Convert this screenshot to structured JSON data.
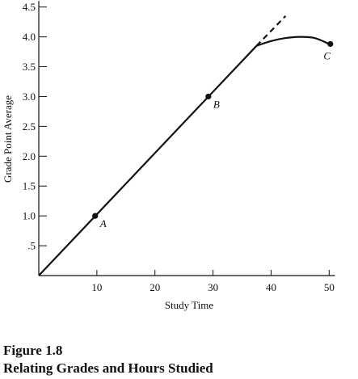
{
  "chart_data": {
    "type": "line",
    "xlabel": "Study Time",
    "ylabel": "Grade Point Average",
    "xlim": [
      0,
      51
    ],
    "ylim": [
      0,
      4.6
    ],
    "xticks": [
      10,
      20,
      30,
      40,
      50
    ],
    "xtick_labels": [
      "10",
      "20",
      "30",
      "40",
      "50"
    ],
    "yticks": [
      0.5,
      1.0,
      1.5,
      2.0,
      2.5,
      3.0,
      3.5,
      4.0,
      4.5
    ],
    "ytick_labels": [
      ".5",
      "1.0",
      "1.5",
      "2.0",
      "2.5",
      "3.0",
      "3.5",
      "4.0",
      "4.5"
    ],
    "grid": false,
    "series": [
      {
        "style": "solid",
        "x": [
          0,
          37.5
        ],
        "y": [
          0,
          3.85
        ]
      },
      {
        "style": "dashed",
        "x": [
          37.5,
          42.5
        ],
        "y": [
          3.85,
          4.35
        ]
      },
      {
        "style": "solid-curve",
        "x": [
          37.5,
          40,
          42.5,
          45,
          47.5,
          50
        ],
        "y": [
          3.85,
          3.93,
          3.98,
          4.0,
          3.98,
          3.88
        ]
      }
    ],
    "points": [
      {
        "label": "A",
        "x": 9.7,
        "y": 1.0
      },
      {
        "label": "B",
        "x": 29.2,
        "y": 3.0
      },
      {
        "label": "C",
        "x": 50.2,
        "y": 3.88
      }
    ]
  },
  "caption": {
    "figure_number": "Figure 1.8",
    "title": "Relating Grades and Hours Studied"
  }
}
